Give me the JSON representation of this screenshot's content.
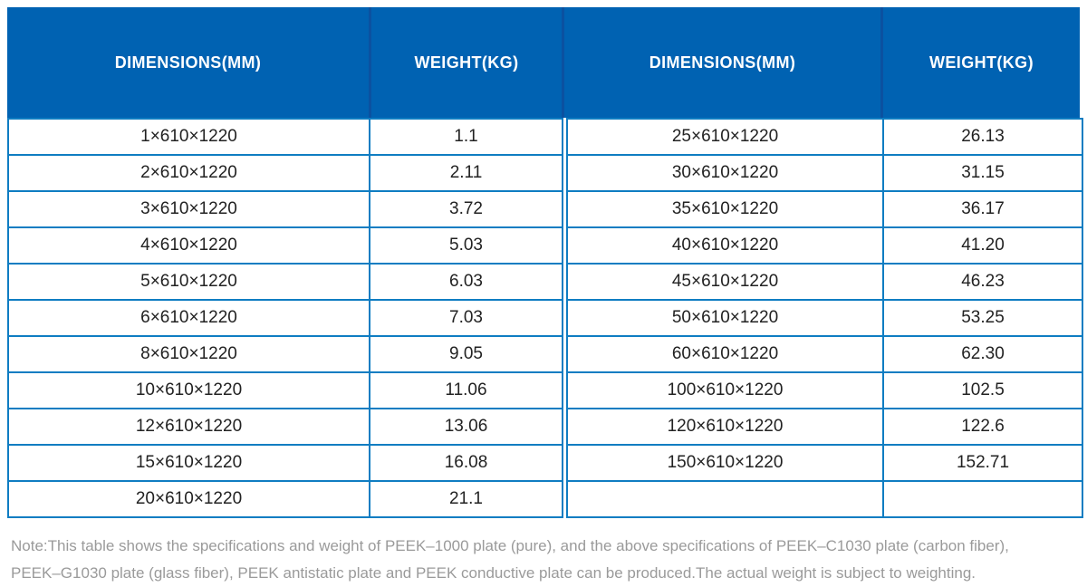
{
  "chart_data": {
    "type": "table",
    "columns": [
      "DIMENSIONS(MM)",
      "WEIGHT(KG)",
      "DIMENSIONS(MM)",
      "WEIGHT(KG)"
    ],
    "left_rows": [
      {
        "dimensions": "1×610×1220",
        "weight": "1.1"
      },
      {
        "dimensions": "2×610×1220",
        "weight": "2.11"
      },
      {
        "dimensions": "3×610×1220",
        "weight": "3.72"
      },
      {
        "dimensions": "4×610×1220",
        "weight": "5.03"
      },
      {
        "dimensions": "5×610×1220",
        "weight": "6.03"
      },
      {
        "dimensions": "6×610×1220",
        "weight": "7.03"
      },
      {
        "dimensions": "8×610×1220",
        "weight": "9.05"
      },
      {
        "dimensions": "10×610×1220",
        "weight": "11.06"
      },
      {
        "dimensions": "12×610×1220",
        "weight": "13.06"
      },
      {
        "dimensions": "15×610×1220",
        "weight": "16.08"
      },
      {
        "dimensions": "20×610×1220",
        "weight": "21.1"
      }
    ],
    "right_rows": [
      {
        "dimensions": "25×610×1220",
        "weight": "26.13"
      },
      {
        "dimensions": "30×610×1220",
        "weight": "31.15"
      },
      {
        "dimensions": "35×610×1220",
        "weight": "36.17"
      },
      {
        "dimensions": "40×610×1220",
        "weight": "41.20"
      },
      {
        "dimensions": "45×610×1220",
        "weight": "46.23"
      },
      {
        "dimensions": "50×610×1220",
        "weight": "53.25"
      },
      {
        "dimensions": "60×610×1220",
        "weight": "62.30"
      },
      {
        "dimensions": "100×610×1220",
        "weight": "102.5"
      },
      {
        "dimensions": "120×610×1220",
        "weight": "122.6"
      },
      {
        "dimensions": "150×610×1220",
        "weight": "152.71"
      },
      {
        "dimensions": "",
        "weight": ""
      }
    ]
  },
  "note": {
    "line1": "Note:This table shows the specifications and weight of PEEK–1000 plate (pure), and the above specifications of PEEK–C1030 plate (carbon fiber),",
    "line2": "PEEK–G1030 plate (glass fiber), PEEK antistatic plate and PEEK conductive plate can be produced.The actual weight is subject to weighting."
  },
  "colors": {
    "header_bg": "#0062B2",
    "header_divider": "#0B51A0",
    "cell_border": "#0F7DC2",
    "cell_text": "#222222",
    "header_text": "#FFFFFF",
    "note_text": "#9A9A9A",
    "page_bg": "#FFFFFF"
  }
}
